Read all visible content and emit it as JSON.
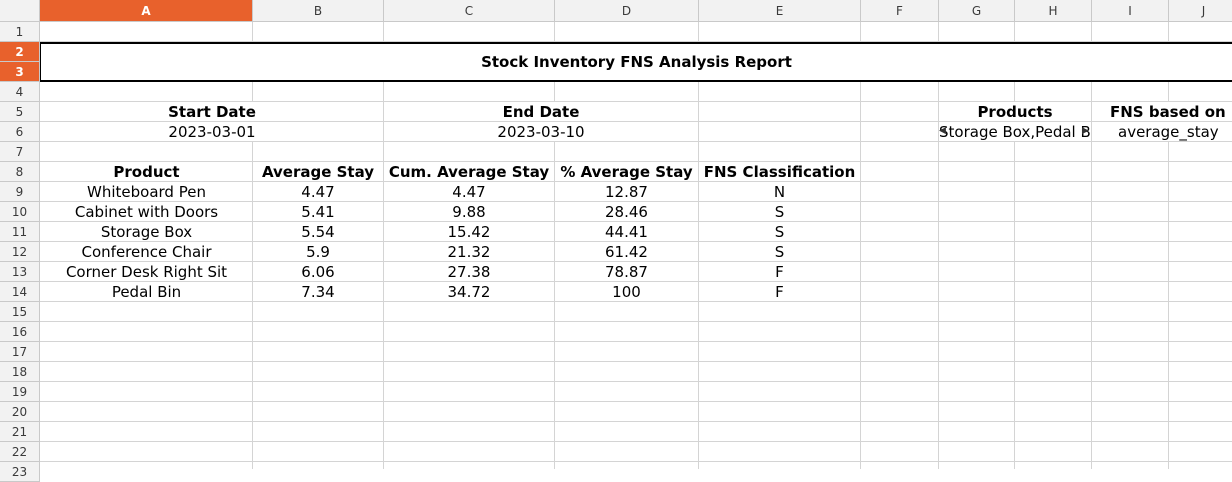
{
  "columns": [
    "A",
    "B",
    "C",
    "D",
    "E",
    "F",
    "G",
    "H",
    "I",
    "J"
  ],
  "rows": [
    "1",
    "2",
    "3",
    "4",
    "5",
    "6",
    "7",
    "8",
    "9",
    "10",
    "11",
    "12",
    "13",
    "14",
    "15",
    "16",
    "17",
    "18",
    "19",
    "20",
    "21",
    "22",
    "23"
  ],
  "title": "Stock Inventory FNS Analysis Report",
  "dates": {
    "start_label": "Start Date",
    "start_value": "2023-03-01",
    "end_label": "End Date",
    "end_value": "2023-03-10"
  },
  "params": {
    "products_label": "Products",
    "products_value": "Storage Box,Pedal B",
    "fns_label": "FNS based on",
    "fns_value": "average_stay"
  },
  "table": {
    "headers": [
      "Product",
      "Average Stay",
      "Cum. Average Stay",
      "% Average Stay",
      "FNS Classification"
    ],
    "rows": [
      [
        "Whiteboard Pen",
        "4.47",
        "4.47",
        "12.87",
        "N"
      ],
      [
        "Cabinet with Doors",
        "5.41",
        "9.88",
        "28.46",
        "S"
      ],
      [
        "Storage Box",
        "5.54",
        "15.42",
        "44.41",
        "S"
      ],
      [
        "Conference Chair",
        "5.9",
        "21.32",
        "61.42",
        "S"
      ],
      [
        "Corner Desk Right Sit",
        "6.06",
        "27.38",
        "78.87",
        "F"
      ],
      [
        "Pedal Bin",
        "7.34",
        "34.72",
        "100",
        "F"
      ]
    ]
  }
}
